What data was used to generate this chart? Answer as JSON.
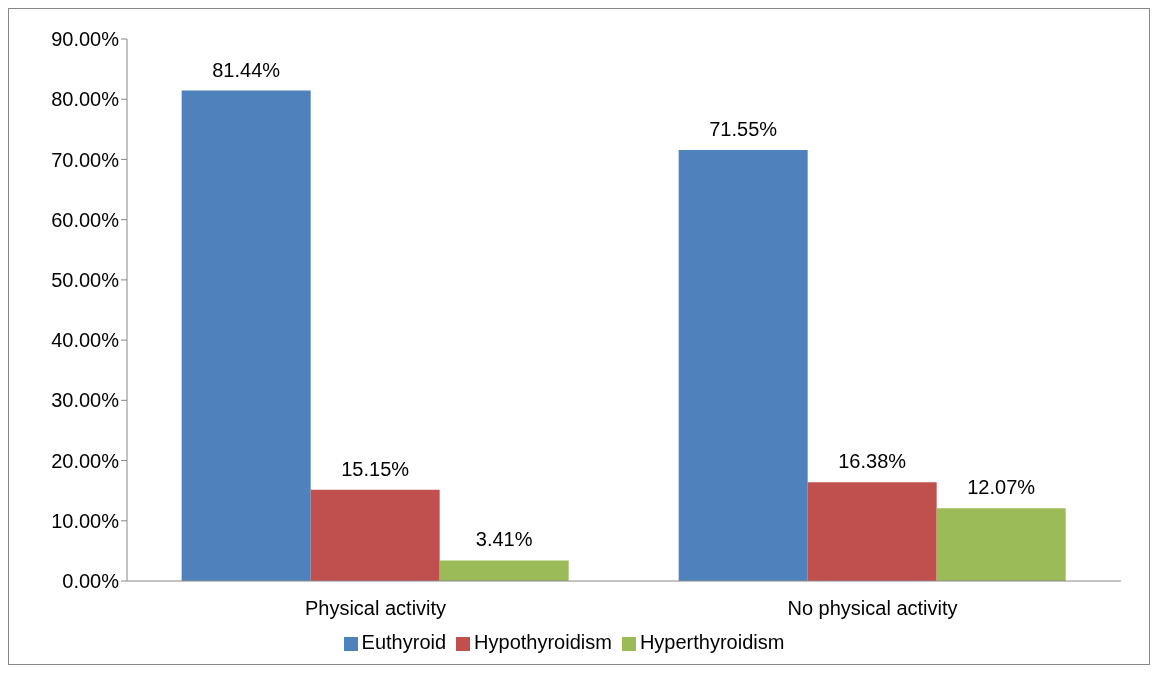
{
  "chart_data": {
    "type": "bar",
    "categories": [
      "Physical activity",
      "No physical activity"
    ],
    "series": [
      {
        "name": "Euthyroid",
        "color": "#4f81bd",
        "values": [
          81.44,
          71.55
        ],
        "value_labels": [
          "81.44%",
          "71.55%"
        ]
      },
      {
        "name": "Hypothyroidism",
        "color": "#c0504d",
        "values": [
          15.15,
          16.38
        ],
        "value_labels": [
          "15.15%",
          "16.38%"
        ]
      },
      {
        "name": "Hyperthyroidism",
        "color": "#9bbb59",
        "values": [
          3.41,
          12.07
        ],
        "value_labels": [
          "3.41%",
          "12.07%"
        ]
      }
    ],
    "ylim": [
      0,
      90
    ],
    "yticks": [
      {
        "value": 0,
        "label": "0.00%"
      },
      {
        "value": 10,
        "label": "10.00%"
      },
      {
        "value": 20,
        "label": "20.00%"
      },
      {
        "value": 30,
        "label": "30.00%"
      },
      {
        "value": 40,
        "label": "40.00%"
      },
      {
        "value": 50,
        "label": "50.00%"
      },
      {
        "value": 60,
        "label": "60.00%"
      },
      {
        "value": 70,
        "label": "70.00%"
      },
      {
        "value": 80,
        "label": "80.00%"
      },
      {
        "value": 90,
        "label": "90.00%"
      }
    ],
    "grid": false,
    "legend": "bottom"
  }
}
